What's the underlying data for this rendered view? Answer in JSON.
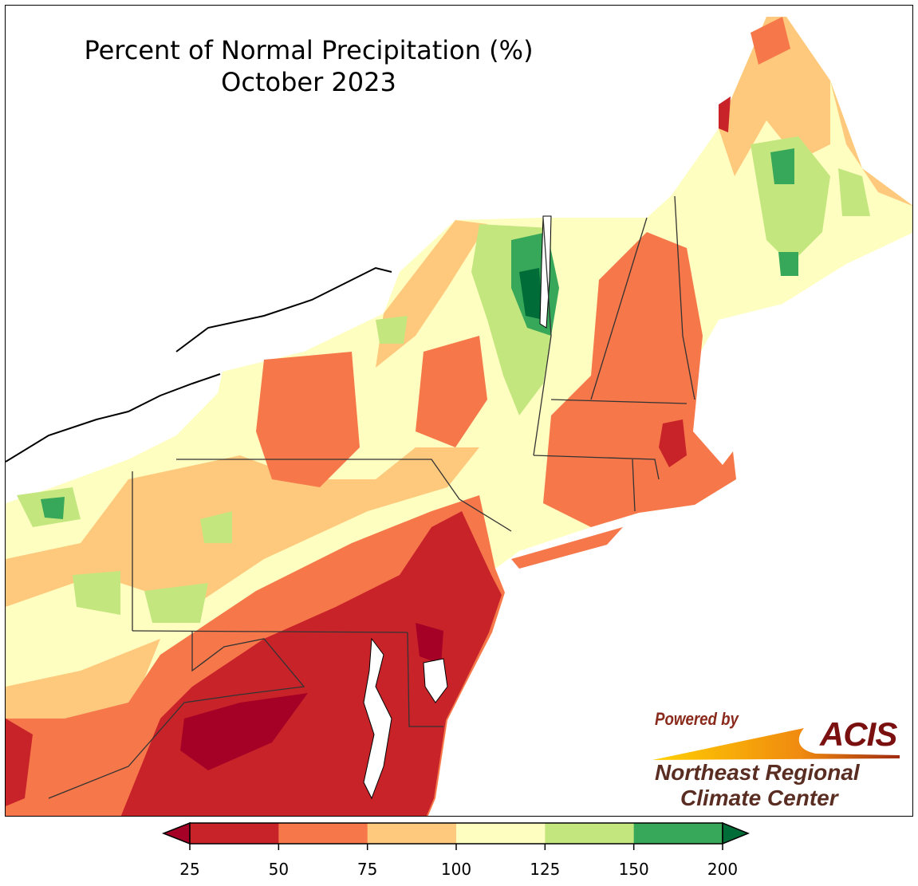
{
  "title": {
    "line1": "Percent of Normal Precipitation (%)",
    "line2": "October 2023"
  },
  "legend": {
    "ticks": [
      "25",
      "50",
      "75",
      "100",
      "125",
      "150",
      "200"
    ],
    "colors": {
      "under": "#a50026",
      "bins": [
        "#c9232a",
        "#f6774a",
        "#fec97c",
        "#fefec0",
        "#c4e67f",
        "#37a75a"
      ],
      "over": "#006d38"
    }
  },
  "logo": {
    "powered_by": "Powered by",
    "acis": "ACIS",
    "line1": "Northeast Regional",
    "line2": "Climate Center"
  },
  "colors": {
    "land_base": "#fefec0",
    "water": "#ffffff",
    "borders": "#333333"
  }
}
